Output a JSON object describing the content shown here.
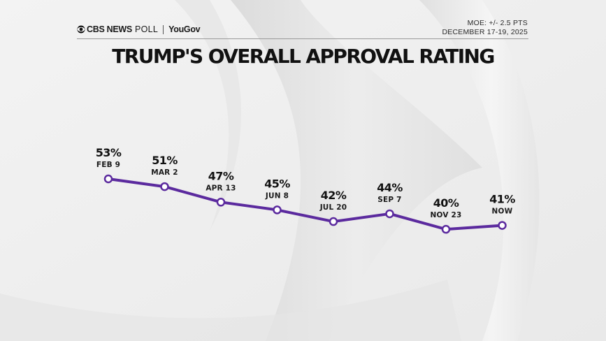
{
  "header": {
    "brand_cbs": "CBS NEWS",
    "brand_poll": "POLL",
    "brand_partner": "YouGov",
    "moe": "MOE: +/- 2.5 PTS",
    "dates": "DECEMBER 17-19, 2025"
  },
  "title": "TRUMP'S OVERALL APPROVAL RATING",
  "chart_data": {
    "type": "line",
    "title": "TRUMP'S OVERALL APPROVAL RATING",
    "categories": [
      "FEB 9",
      "MAR 2",
      "APR 13",
      "JUN 8",
      "JUL 20",
      "SEP 7",
      "NOV 23",
      "NOW"
    ],
    "values": [
      53,
      51,
      47,
      45,
      42,
      44,
      40,
      41
    ],
    "value_labels": [
      "53%",
      "51%",
      "47%",
      "45%",
      "42%",
      "44%",
      "40%",
      "41%"
    ],
    "unit": "%",
    "xlabel": "",
    "ylabel": "",
    "grid": false,
    "legend": "none",
    "line_color": "#5b2a9e",
    "marker_fill": "#ffffff"
  }
}
